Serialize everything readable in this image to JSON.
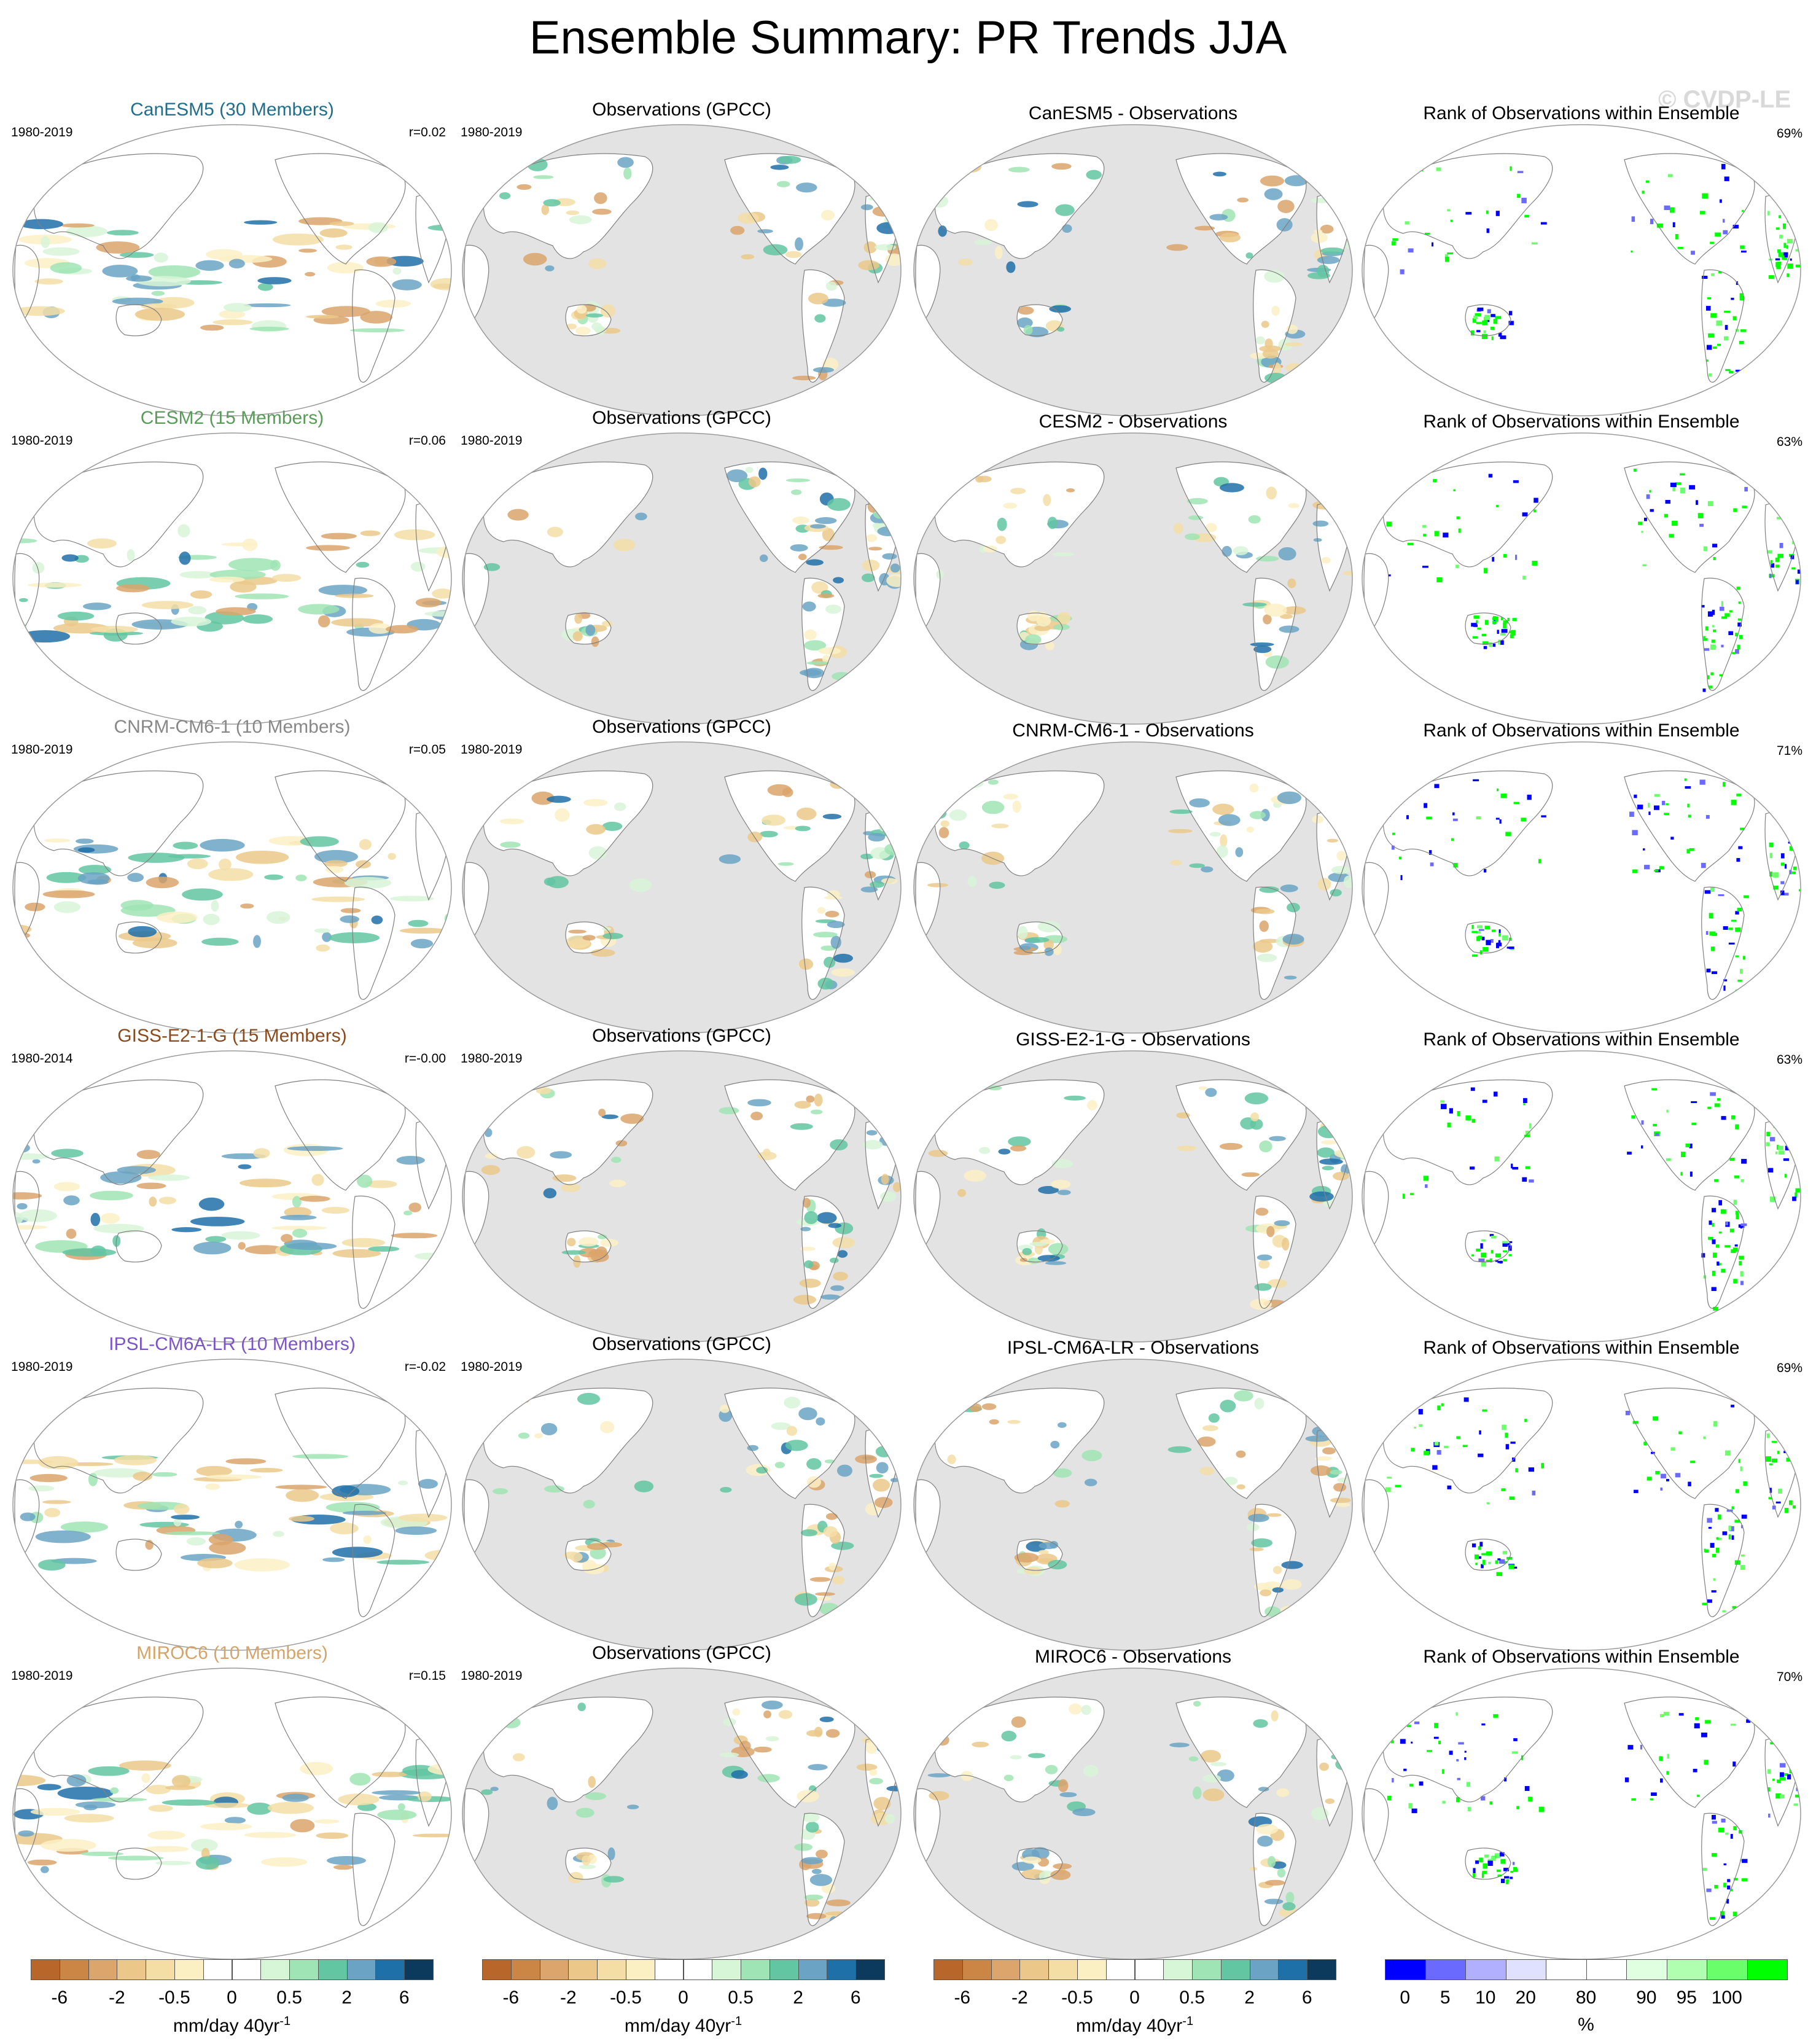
{
  "figure_title": "Ensemble Summary: PR Trends JJA",
  "watermark": "© CVDP-LE",
  "rows": [
    {
      "model_title": "CanESM5 (30 Members)",
      "model_color": "#1f6e8c",
      "model_period": "1980-2019",
      "model_r": "r=0.02",
      "obs_title": "Observations (GPCC)",
      "obs_period": "1980-2019",
      "diff_title": "CanESM5 - Observations",
      "rank_title": "Rank of Observations within Ensemble",
      "rank_pct": "69%"
    },
    {
      "model_title": "CESM2 (15 Members)",
      "model_color": "#5a9b5a",
      "model_period": "1980-2019",
      "model_r": "r=0.06",
      "obs_title": "Observations (GPCC)",
      "obs_period": "1980-2019",
      "diff_title": "CESM2 - Observations",
      "rank_title": "Rank of Observations within Ensemble",
      "rank_pct": "63%"
    },
    {
      "model_title": "CNRM-CM6-1 (10 Members)",
      "model_color": "#888888",
      "model_period": "1980-2019",
      "model_r": "r=0.05",
      "obs_title": "Observations (GPCC)",
      "obs_period": "1980-2019",
      "diff_title": "CNRM-CM6-1 - Observations",
      "rank_title": "Rank of Observations within Ensemble",
      "rank_pct": "71%"
    },
    {
      "model_title": "GISS-E2-1-G (15 Members)",
      "model_color": "#8b4a1c",
      "model_period": "1980-2014",
      "model_r": "r=-0.00",
      "obs_title": "Observations (GPCC)",
      "obs_period": "1980-2019",
      "diff_title": "GISS-E2-1-G - Observations",
      "rank_title": "Rank of Observations within Ensemble",
      "rank_pct": "63%"
    },
    {
      "model_title": "IPSL-CM6A-LR (10 Members)",
      "model_color": "#7b55c6",
      "model_period": "1980-2019",
      "model_r": "r=-0.02",
      "obs_title": "Observations (GPCC)",
      "obs_period": "1980-2019",
      "diff_title": "IPSL-CM6A-LR - Observations",
      "rank_title": "Rank of Observations within Ensemble",
      "rank_pct": "69%"
    },
    {
      "model_title": "MIROC6 (10 Members)",
      "model_color": "#d4a46a",
      "model_period": "1980-2019",
      "model_r": "r=0.15",
      "obs_title": "Observations (GPCC)",
      "obs_period": "1980-2019",
      "diff_title": "MIROC6 - Observations",
      "rank_title": "Rank of Observations within Ensemble",
      "rank_pct": "70%"
    }
  ],
  "trend_colorbar": {
    "colors": [
      "#b8662a",
      "#cb8646",
      "#dba56b",
      "#ebc88a",
      "#f5dea6",
      "#fbf0c4",
      "#ffffff",
      "#ffffff",
      "#d7f5d7",
      "#9fe4b4",
      "#62c6a2",
      "#6aa3c4",
      "#1e70a8",
      "#0b3a5c"
    ],
    "ticks": [
      "-6",
      "-2",
      "-0.5",
      "0",
      "0.5",
      "2",
      "6"
    ],
    "unit": "mm/day 40yr",
    "unit_sup": "-1"
  },
  "rank_colorbar": {
    "colors": [
      "#0000ff",
      "#6a6aff",
      "#b0b0ff",
      "#e0e0ff",
      "#ffffff",
      "#ffffff",
      "#e0ffe0",
      "#b0ffb0",
      "#6aff6a",
      "#00ff00"
    ],
    "ticks": [
      "0",
      "5",
      "10",
      "20",
      "80",
      "90",
      "95",
      "100"
    ],
    "unit": "%"
  }
}
